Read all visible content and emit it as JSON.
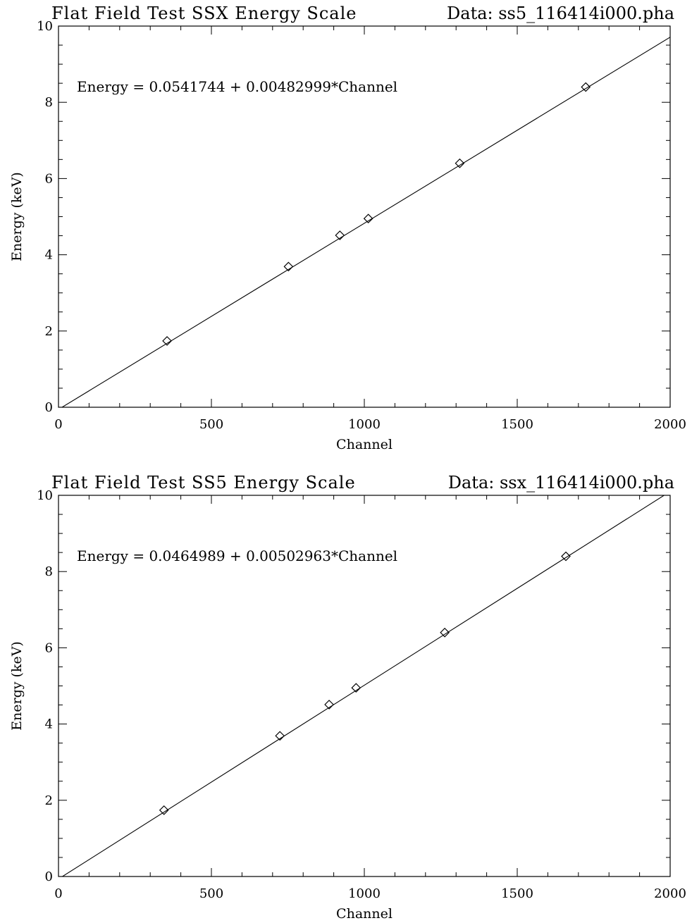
{
  "chart_data": [
    {
      "type": "scatter",
      "title": "Flat Field Test SSX Energy Scale",
      "data_label": "Data: ss5_116414i000.pha",
      "xlabel": "Channel",
      "ylabel": "Energy (keV)",
      "xlim": [
        0,
        2000
      ],
      "ylim": [
        0,
        10
      ],
      "xticks": [
        0,
        500,
        1000,
        1500,
        2000
      ],
      "yticks": [
        0,
        2,
        4,
        6,
        8,
        10
      ],
      "annotation": "Energy = 0.0541744 + 0.00482999*Channel",
      "fit": {
        "intercept": 0.0541744,
        "slope": 0.00482999
      },
      "points": [
        {
          "x": 355,
          "y": 1.74
        },
        {
          "x": 752,
          "y": 3.69
        },
        {
          "x": 920,
          "y": 4.51
        },
        {
          "x": 1013,
          "y": 4.95
        },
        {
          "x": 1312,
          "y": 6.4
        },
        {
          "x": 1724,
          "y": 8.4
        }
      ]
    },
    {
      "type": "scatter",
      "title": "Flat Field Test SS5 Energy Scale",
      "data_label": "Data: ssx_116414i000.pha",
      "xlabel": "Channel",
      "ylabel": "Energy (keV)",
      "xlim": [
        0,
        2000
      ],
      "ylim": [
        0,
        10
      ],
      "xticks": [
        0,
        500,
        1000,
        1500,
        2000
      ],
      "yticks": [
        0,
        2,
        4,
        6,
        8,
        10
      ],
      "annotation": "Energy = 0.0464989 + 0.00502963*Channel",
      "fit": {
        "intercept": 0.0464989,
        "slope": 0.00502963
      },
      "points": [
        {
          "x": 345,
          "y": 1.74
        },
        {
          "x": 724,
          "y": 3.69
        },
        {
          "x": 885,
          "y": 4.51
        },
        {
          "x": 973,
          "y": 4.95
        },
        {
          "x": 1263,
          "y": 6.4
        },
        {
          "x": 1659,
          "y": 8.4
        }
      ]
    }
  ]
}
